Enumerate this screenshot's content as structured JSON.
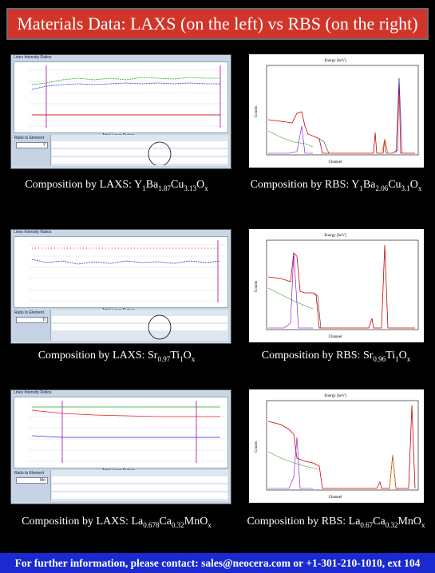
{
  "title": "Materials Data: LAXS (on the left) vs RBS (on the right)",
  "rows": [
    {
      "laxs": {
        "header": "Lines Intensity Ratios",
        "xlabel": "Total Laser Pulses",
        "ratio_label": "Ratio to Element",
        "element": "Y"
      },
      "rbs": {
        "top_label": "Energy [keV]",
        "xlabel": "Channel",
        "ylabel": "Counts"
      },
      "cap_left": {
        "prefix": "Composition by LAXS: ",
        "parts": [
          [
            "Y",
            "1"
          ],
          [
            "Ba",
            "1.87"
          ],
          [
            "Cu",
            "3.13"
          ],
          [
            "O",
            "x"
          ]
        ]
      },
      "cap_right": {
        "prefix": "Composition by RBS: ",
        "parts": [
          [
            "Y",
            "1"
          ],
          [
            "Ba",
            "2.06"
          ],
          [
            "Cu",
            "3.1"
          ],
          [
            "O",
            "x"
          ]
        ]
      }
    },
    {
      "laxs": {
        "header": "Lines Intensity Ratios",
        "xlabel": "Total Laser Pulses",
        "ratio_label": "Ratio to Element",
        "element": "Ti"
      },
      "rbs": {
        "top_label": "Energy [keV]",
        "xlabel": "Channel",
        "ylabel": "Counts"
      },
      "cap_left": {
        "prefix": "Composition by LAXS: ",
        "parts": [
          [
            "Sr",
            "0.97"
          ],
          [
            "Ti",
            "1"
          ],
          [
            "O",
            "x"
          ]
        ]
      },
      "cap_right": {
        "prefix": "Composition by RBS: ",
        "parts": [
          [
            "Sr",
            "0.96"
          ],
          [
            "Ti",
            "1"
          ],
          [
            "O",
            "x"
          ]
        ]
      }
    },
    {
      "laxs": {
        "header": "Lines Intensity Ratios",
        "xlabel": "Total Laser Pulses",
        "ratio_label": "Ratio to Element",
        "element": "Mn"
      },
      "rbs": {
        "top_label": "Energy [keV]",
        "xlabel": "Channel",
        "ylabel": "Counts"
      },
      "cap_left": {
        "prefix": "Composition by LAXS: ",
        "parts": [
          [
            "La",
            "0.678"
          ],
          [
            "Ca",
            "0.32"
          ],
          [
            "Mn",
            ""
          ],
          [
            "O",
            "x"
          ]
        ]
      },
      "cap_right": {
        "prefix": "Composition by RBS: ",
        "parts": [
          [
            "La",
            "0.67"
          ],
          [
            "Ca",
            "0.32"
          ],
          [
            "Mn",
            ""
          ],
          [
            "O",
            "x"
          ]
        ]
      }
    }
  ],
  "footer": "For further information, please contact: sales@neocera.com or +1-301-210-1010, ext 104"
}
